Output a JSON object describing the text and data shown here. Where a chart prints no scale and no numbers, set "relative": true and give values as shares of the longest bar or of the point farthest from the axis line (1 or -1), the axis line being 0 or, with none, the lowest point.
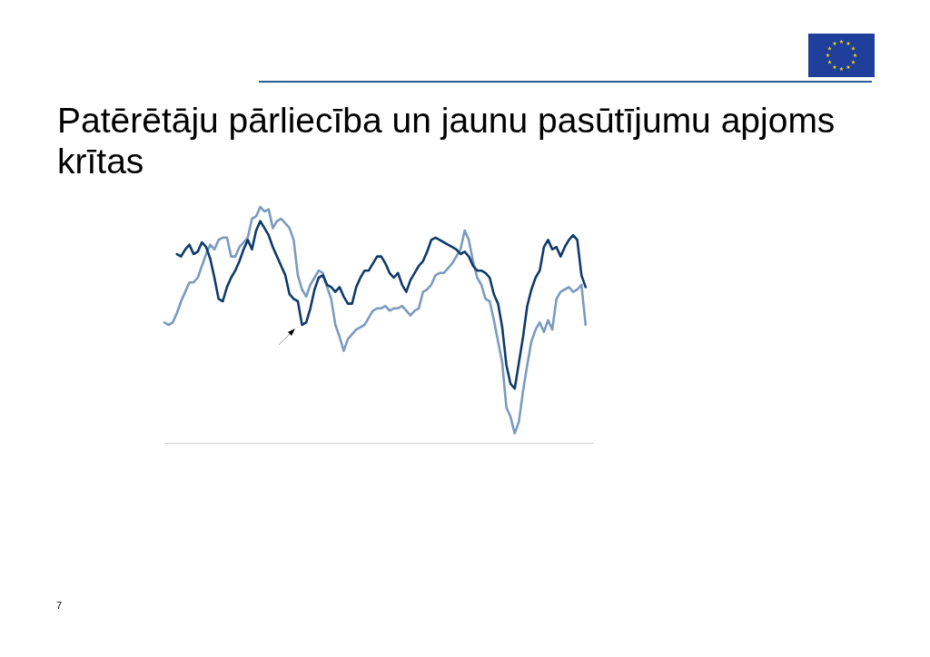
{
  "chart_data": {
    "type": "line",
    "title": "Patērētāju pārliecība un jaunu pasūtījumu apjoms krītas",
    "annotations": [
      "7"
    ],
    "relative": true,
    "tick_labels": false,
    "marker": "none",
    "categories": [
      null,
      null,
      null,
      null,
      null,
      null,
      null,
      null,
      null,
      null,
      null,
      null,
      null,
      null,
      null,
      null,
      null,
      null,
      null,
      null,
      null,
      null,
      null,
      null,
      null,
      null,
      null,
      null,
      null,
      null,
      null,
      null,
      null,
      null,
      null,
      null,
      null,
      null,
      null,
      null,
      null,
      null,
      null,
      null,
      null,
      null,
      null,
      null,
      null,
      null,
      null,
      null,
      null,
      null,
      null,
      null,
      null,
      null,
      null,
      null,
      null,
      null,
      null,
      null,
      null,
      null,
      null,
      null,
      null,
      null,
      null,
      null,
      null,
      null,
      null,
      null,
      null,
      null,
      null,
      null,
      null,
      null,
      null,
      null,
      null,
      null,
      null,
      null,
      null,
      null,
      null,
      null,
      null,
      null,
      null,
      null,
      null,
      null,
      null,
      null,
      null,
      null,
      null,
      null
    ],
    "series": [
      {
        "color": "#0f3a6b",
        "values": [
          null,
          null,
          null,
          0.8,
          0.79,
          0.82,
          0.84,
          0.8,
          0.81,
          0.85,
          0.83,
          0.78,
          0.7,
          0.61,
          0.6,
          0.66,
          0.7,
          0.73,
          0.77,
          0.82,
          0.86,
          0.82,
          0.9,
          0.94,
          0.91,
          0.88,
          0.83,
          0.79,
          0.75,
          0.71,
          0.63,
          0.61,
          0.6,
          0.5,
          0.51,
          0.57,
          0.65,
          0.7,
          0.71,
          0.67,
          0.66,
          0.64,
          0.66,
          0.62,
          0.59,
          0.59,
          0.66,
          0.7,
          0.73,
          0.73,
          0.76,
          0.79,
          0.79,
          0.76,
          0.72,
          0.7,
          0.72,
          0.67,
          0.64,
          0.69,
          0.72,
          0.75,
          0.77,
          0.81,
          0.86,
          0.87,
          0.86,
          0.85,
          0.84,
          0.83,
          0.82,
          0.8,
          0.81,
          0.79,
          0.75,
          0.73,
          0.73,
          0.72,
          0.7,
          0.63,
          0.59,
          0.49,
          0.33,
          0.25,
          0.23,
          0.34,
          0.45,
          0.58,
          0.65,
          0.7,
          0.73,
          0.83,
          0.86,
          0.82,
          0.83,
          0.79,
          0.83,
          0.86,
          0.88,
          0.86,
          0.71,
          0.66,
          null,
          null
        ]
      },
      {
        "color": "#7b9bbf",
        "values": [
          0.51,
          0.5,
          0.51,
          0.55,
          0.6,
          0.64,
          0.68,
          0.68,
          0.7,
          0.75,
          0.8,
          0.84,
          0.82,
          0.86,
          0.87,
          0.87,
          0.79,
          0.79,
          0.83,
          0.85,
          0.87,
          0.95,
          0.96,
          1,
          0.98,
          0.99,
          0.91,
          0.94,
          0.95,
          0.93,
          0.91,
          0.86,
          0.71,
          0.65,
          0.62,
          0.67,
          0.7,
          0.73,
          0.72,
          0.66,
          0.61,
          0.5,
          0.45,
          0.39,
          0.44,
          0.46,
          0.48,
          0.49,
          0.5,
          0.53,
          0.56,
          0.57,
          0.57,
          0.58,
          0.56,
          0.57,
          0.57,
          0.58,
          0.56,
          0.54,
          0.56,
          0.57,
          0.64,
          0.65,
          0.67,
          0.71,
          0.72,
          0.72,
          0.74,
          0.76,
          0.79,
          0.82,
          0.9,
          0.86,
          0.77,
          0.7,
          0.67,
          0.61,
          0.6,
          0.52,
          0.43,
          0.34,
          0.15,
          0.11,
          0.04,
          0.09,
          0.22,
          0.33,
          0.43,
          0.48,
          0.51,
          0.47,
          0.52,
          0.48,
          0.61,
          0.64,
          0.65,
          0.66,
          0.64,
          0.65,
          0.67,
          0.5,
          null,
          null
        ]
      }
    ]
  }
}
